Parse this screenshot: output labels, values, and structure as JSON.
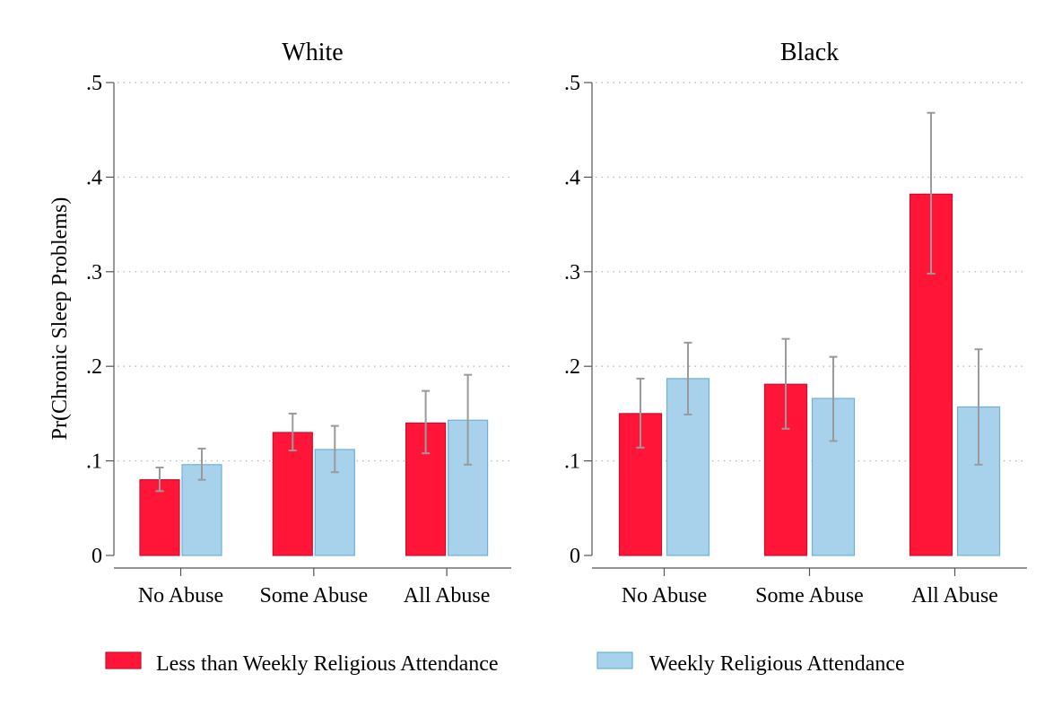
{
  "chart_data": {
    "type": "bar",
    "ylabel": "Pr(Chronic Sleep Problems)",
    "ylim": [
      0,
      0.5
    ],
    "yticks": [
      0,
      0.1,
      0.2,
      0.3,
      0.4,
      0.5
    ],
    "ytick_labels": [
      "0",
      ".1",
      ".2",
      ".3",
      ".4",
      ".5"
    ],
    "grid": true,
    "legend_position": "bottom",
    "categories": [
      "No Abuse",
      "Some Abuse",
      "All Abuse"
    ],
    "series": [
      {
        "name": "Less than Weekly Religious Attendance",
        "color": "#ff1538",
        "edge": "#c8102e"
      },
      {
        "name": "Weekly Religious Attendance",
        "color": "#a8d2ec",
        "edge": "#6fb0d8"
      }
    ],
    "panels": [
      {
        "title": "White",
        "values": [
          [
            0.08,
            0.13,
            0.14
          ],
          [
            0.096,
            0.112,
            0.143
          ]
        ],
        "ci_low": [
          [
            0.068,
            0.111,
            0.108
          ],
          [
            0.08,
            0.088,
            0.096
          ]
        ],
        "ci_high": [
          [
            0.093,
            0.15,
            0.174
          ],
          [
            0.113,
            0.137,
            0.191
          ]
        ]
      },
      {
        "title": "Black",
        "values": [
          [
            0.15,
            0.181,
            0.382
          ],
          [
            0.187,
            0.166,
            0.157
          ]
        ],
        "ci_low": [
          [
            0.114,
            0.134,
            0.298
          ],
          [
            0.149,
            0.121,
            0.096
          ]
        ],
        "ci_high": [
          [
            0.187,
            0.229,
            0.468
          ],
          [
            0.225,
            0.21,
            0.218
          ]
        ]
      }
    ]
  }
}
